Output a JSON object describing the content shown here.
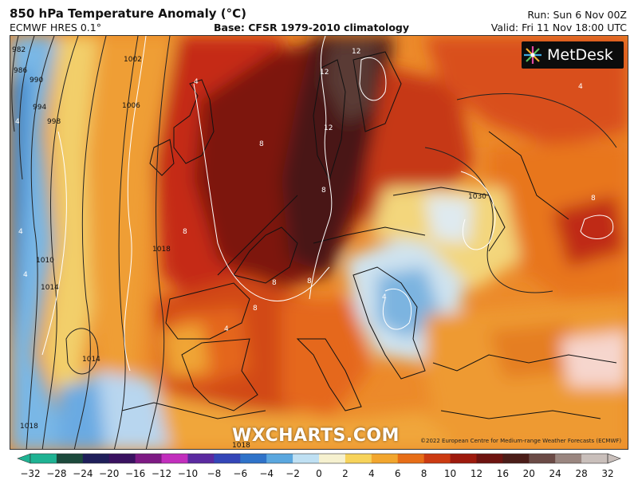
{
  "header": {
    "title": "850 hPa Temperature Anomaly (°C)",
    "model": "ECMWF HRES 0.1°",
    "base": "Base: CFSR 1979-2010 climatology",
    "run": "Run: Sun 6 Nov 00Z",
    "valid": "Valid: Fri 11 Nov 18:00 UTC"
  },
  "logo": {
    "text": "MetDesk",
    "icon": "metdesk-star-icon"
  },
  "watermark": "WXCHARTS.COM",
  "copyright": "©2022 European Centre for Medium-range Weather Forecasts (ECMWF)",
  "colorbar": {
    "ticks": [
      "−32",
      "−28",
      "−24",
      "−20",
      "−16",
      "−12",
      "−10",
      "−8",
      "−6",
      "−4",
      "−2",
      "0",
      "2",
      "4",
      "6",
      "8",
      "10",
      "12",
      "16",
      "20",
      "24",
      "28",
      "32"
    ],
    "colors": [
      "#1fb393",
      "#1c4a3c",
      "#1f1f5a",
      "#3a1260",
      "#7e1a84",
      "#c22fbd",
      "#5b2aa0",
      "#3446b8",
      "#2f73c9",
      "#5aa7df",
      "#bfe0f3",
      "#f6f1cf",
      "#f7d35a",
      "#f2a62e",
      "#e76e17",
      "#cc3b12",
      "#9e1a0d",
      "#6e1410",
      "#4b1d18",
      "#6b4b46",
      "#9a8680",
      "#c9bfbb"
    ]
  },
  "map": {
    "isobar_labels": [
      "982",
      "986",
      "990",
      "994",
      "998",
      "1002",
      "1006",
      "1010",
      "1014",
      "1018",
      "1014",
      "1018",
      "1018",
      "1030"
    ],
    "anomaly_labels": [
      "12",
      "12",
      "12",
      "8",
      "8",
      "8",
      "8",
      "8",
      "8",
      "4",
      "4",
      "4",
      "4",
      "4",
      "4",
      "4",
      "8"
    ]
  }
}
